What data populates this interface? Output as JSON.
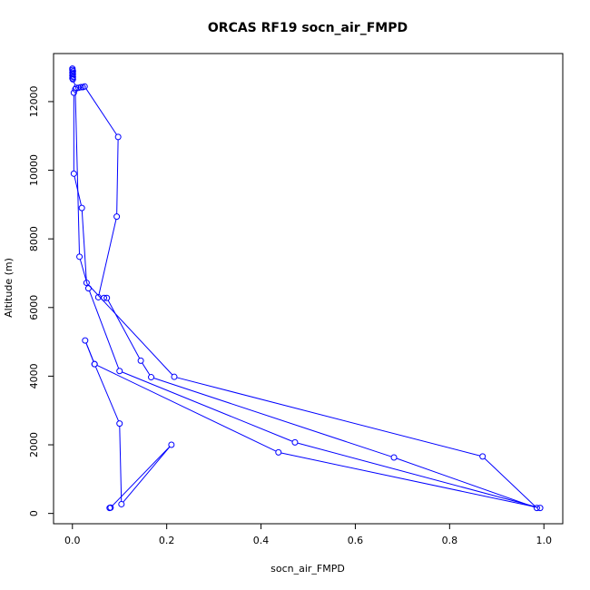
{
  "chart_data": {
    "type": "scatter",
    "title": "ORCAS RF19 socn_air_FMPD",
    "xlabel": "socn_air_FMPD",
    "ylabel": "Altitude (m)",
    "xlim": [
      -0.04,
      1.04
    ],
    "ylim": [
      -300,
      13400
    ],
    "xticks": [
      0.0,
      0.2,
      0.4,
      0.6,
      0.8,
      1.0
    ],
    "xtick_labels": [
      "0.0",
      "0.2",
      "0.4",
      "0.6",
      "0.8",
      "1.0"
    ],
    "yticks": [
      0,
      2000,
      4000,
      6000,
      8000,
      10000,
      12000
    ],
    "ytick_labels": [
      "0",
      "2000",
      "4000",
      "6000",
      "8000",
      "10000",
      "12000"
    ],
    "grid": false,
    "line_color": "#0000ff",
    "marker": "open-circle",
    "series": [
      {
        "values": [
          {
            "x": 0.0,
            "y": 12960
          },
          {
            "x": 0.0,
            "y": 12920
          },
          {
            "x": 0.001,
            "y": 12880
          },
          {
            "x": 0.0,
            "y": 12840
          },
          {
            "x": 0.001,
            "y": 12800
          },
          {
            "x": 0.0,
            "y": 12760
          },
          {
            "x": 0.001,
            "y": 12720
          },
          {
            "x": 0.0,
            "y": 12680
          },
          {
            "x": 0.001,
            "y": 12650
          },
          {
            "x": 0.008,
            "y": 12400
          },
          {
            "x": 0.013,
            "y": 12400
          },
          {
            "x": 0.018,
            "y": 12420
          },
          {
            "x": 0.022,
            "y": 12420
          },
          {
            "x": 0.026,
            "y": 12440
          },
          {
            "x": 0.097,
            "y": 10970
          },
          {
            "x": 0.094,
            "y": 8650
          },
          {
            "x": 0.055,
            "y": 6300
          },
          {
            "x": 0.067,
            "y": 6280
          },
          {
            "x": 0.073,
            "y": 6280
          },
          {
            "x": 0.145,
            "y": 4450
          },
          {
            "x": 0.167,
            "y": 3970
          },
          {
            "x": 0.682,
            "y": 1630
          },
          {
            "x": 0.985,
            "y": 160
          },
          {
            "x": 0.87,
            "y": 1660
          },
          {
            "x": 0.216,
            "y": 3980
          },
          {
            "x": 0.03,
            "y": 6720
          },
          {
            "x": 0.02,
            "y": 8900
          },
          {
            "x": 0.003,
            "y": 9900
          },
          {
            "x": 0.003,
            "y": 12260
          },
          {
            "x": 0.006,
            "y": 12360
          },
          {
            "x": 0.015,
            "y": 7480
          },
          {
            "x": 0.034,
            "y": 6560
          },
          {
            "x": 0.1,
            "y": 4150
          },
          {
            "x": 0.472,
            "y": 2070
          },
          {
            "x": 0.992,
            "y": 160
          },
          {
            "x": 0.437,
            "y": 1780
          },
          {
            "x": 0.047,
            "y": 4350
          },
          {
            "x": 0.027,
            "y": 5040
          },
          {
            "x": 0.047,
            "y": 4350
          },
          {
            "x": 0.1,
            "y": 2620
          },
          {
            "x": 0.104,
            "y": 270
          },
          {
            "x": 0.21,
            "y": 2000
          },
          {
            "x": 0.081,
            "y": 170
          },
          {
            "x": 0.079,
            "y": 160
          }
        ]
      }
    ]
  }
}
